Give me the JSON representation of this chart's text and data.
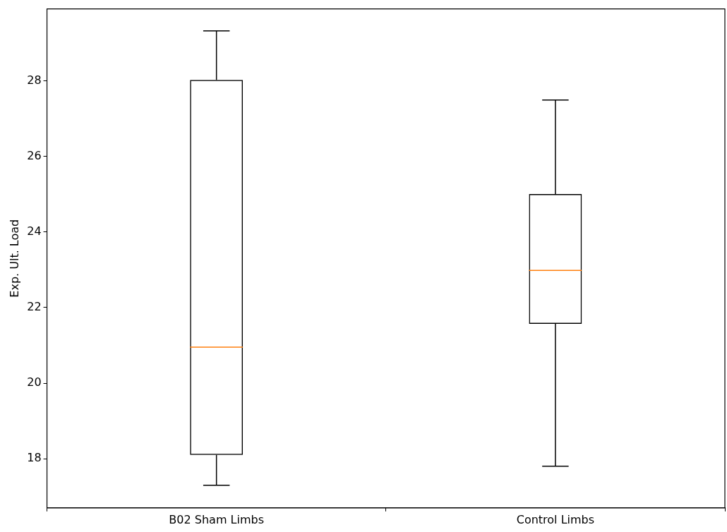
{
  "chart_data": {
    "type": "box",
    "ylabel": "Exp. Ult. Load",
    "categories": [
      "B02 Sham Limbs",
      "Control Limbs"
    ],
    "boxes": [
      {
        "low": 17.3,
        "q1": 18.1,
        "median": 20.95,
        "q3": 28.02,
        "high": 29.32
      },
      {
        "low": 17.8,
        "q1": 21.57,
        "median": 22.98,
        "q3": 25.0,
        "high": 27.49
      }
    ],
    "ylim": [
      16.7,
      29.9
    ],
    "yticks": [
      18,
      20,
      22,
      24,
      26,
      28
    ],
    "grid": false
  }
}
